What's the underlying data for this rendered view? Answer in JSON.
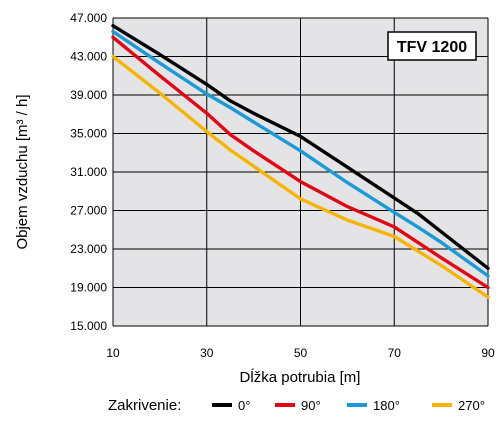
{
  "chart_data": {
    "type": "line",
    "title": "TFV 1200",
    "xlabel": "Dĺžka potrubia [m]",
    "ylabel": "Objem vzduchu [m³ / h]",
    "xlim": [
      10,
      90
    ],
    "ylim": [
      15000,
      47000
    ],
    "x_ticks": [
      "10",
      "30",
      "50",
      "70",
      "90"
    ],
    "y_ticks": [
      "15.000",
      "19.000",
      "23.000",
      "27.000",
      "31.000",
      "35.000",
      "39.000",
      "43.000",
      "47.000"
    ],
    "grid": true,
    "series": [
      {
        "name": "0°",
        "color": "#000000",
        "points": [
          [
            10,
            46200
          ],
          [
            20,
            43200
          ],
          [
            30,
            40100
          ],
          [
            35,
            38400
          ],
          [
            40,
            37100
          ],
          [
            50,
            34700
          ],
          [
            60,
            31500
          ],
          [
            70,
            28300
          ],
          [
            75,
            26700
          ],
          [
            80,
            24800
          ],
          [
            90,
            21000
          ]
        ]
      },
      {
        "name": "90°",
        "color": "#e30613",
        "points": [
          [
            10,
            45000
          ],
          [
            20,
            41000
          ],
          [
            30,
            37100
          ],
          [
            35,
            34900
          ],
          [
            40,
            33200
          ],
          [
            50,
            30000
          ],
          [
            60,
            27400
          ],
          [
            70,
            25300
          ],
          [
            75,
            23700
          ],
          [
            80,
            22100
          ],
          [
            90,
            19000
          ]
        ]
      },
      {
        "name": "180°",
        "color": "#1a9ad6",
        "points": [
          [
            10,
            45600
          ],
          [
            20,
            42300
          ],
          [
            30,
            39100
          ],
          [
            35,
            37700
          ],
          [
            40,
            36200
          ],
          [
            50,
            33200
          ],
          [
            60,
            29900
          ],
          [
            70,
            26800
          ],
          [
            75,
            25300
          ],
          [
            80,
            23700
          ],
          [
            90,
            20200
          ]
        ]
      },
      {
        "name": "270°",
        "color": "#f7b500",
        "points": [
          [
            10,
            43000
          ],
          [
            20,
            39200
          ],
          [
            30,
            35200
          ],
          [
            35,
            33300
          ],
          [
            40,
            31600
          ],
          [
            50,
            28200
          ],
          [
            60,
            26000
          ],
          [
            70,
            24300
          ],
          [
            75,
            22800
          ],
          [
            80,
            21300
          ],
          [
            90,
            18000
          ]
        ]
      }
    ]
  },
  "legend": {
    "title": "Zakrivenie:",
    "position": "bottom"
  },
  "plot_background": "#e4e4e6"
}
